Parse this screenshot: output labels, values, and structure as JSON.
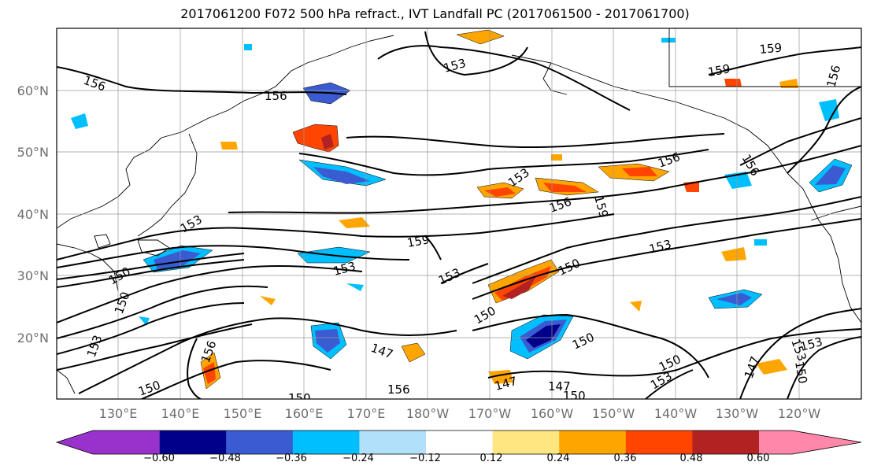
{
  "title": "2017061200 F072 500 hPa refract., IVT Landfall PC (2017061500 - 2017061700)",
  "lat_labels": [
    "60°N",
    "50°N",
    "40°N",
    "30°N",
    "20°N"
  ],
  "lon_labels": [
    "130°E",
    "140°E",
    "150°E",
    "160°E",
    "170°E",
    "180°W",
    "170°W",
    "160°W",
    "150°W",
    "140°W",
    "130°W",
    "120°W"
  ],
  "contour_labels": [
    "156",
    "156",
    "153",
    "159",
    "159",
    "156",
    "156",
    "156",
    "153",
    "153",
    "156",
    "159",
    "153",
    "153",
    "159",
    "150",
    "150",
    "153",
    "153",
    "156",
    "150",
    "150",
    "147",
    "150",
    "153",
    "150",
    "147",
    "150",
    "153",
    "150",
    "147",
    "150",
    "147",
    "156",
    "150",
    "153"
  ],
  "colorbar": {
    "ticks": [
      "−0.60",
      "−0.48",
      "−0.36",
      "−0.24",
      "−0.12",
      "0.12",
      "0.24",
      "0.36",
      "0.48",
      "0.60"
    ],
    "colors": [
      "#9932cc",
      "#00008b",
      "#3a5bd1",
      "#00bfff",
      "#b0e0fa",
      "#ffffff",
      "#ffe680",
      "#ffa500",
      "#ff4500",
      "#b22222",
      "#ff88aa"
    ]
  }
}
